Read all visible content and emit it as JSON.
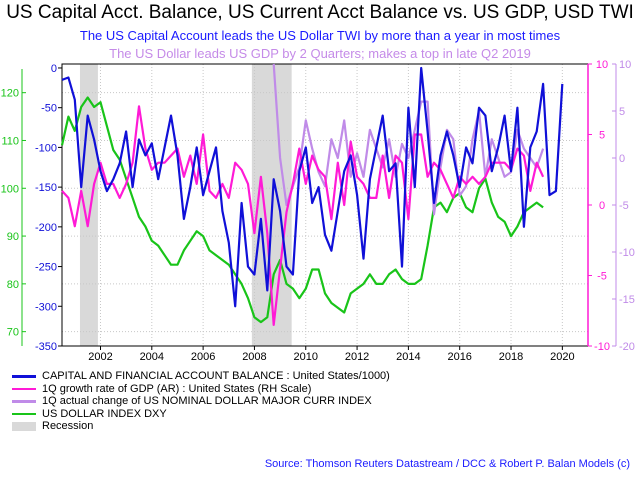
{
  "title": "US Capital Acct. Balance, US Current Acct Balance vs. US GDP, USD TWI",
  "subtitle1": "The US Capital Account leads the US Dollar TWI by more than a year in most times",
  "subtitle2": "The US Dollar leads US GDP by 2 Quarters; makes a top in late Q2 2019",
  "source": "Source: Thomson Reuters Datastream / DCC & Robert P. Balan Models (c)",
  "colors": {
    "capital": "#1010d8",
    "gdp": "#ff1ad6",
    "currency": "#c08be8",
    "dxy": "#19c419",
    "recession": "#d9d9d9",
    "axis_green": "#19c419",
    "axis_blue": "#1010d8",
    "axis_magenta": "#ff1ad6",
    "axis_purple": "#c08be8"
  },
  "legend": [
    {
      "label": "CAPITAL AND FINANCIAL ACCOUNT BALANCE : United States/1000)",
      "color": "#1010d8",
      "kind": "line"
    },
    {
      "label": "1Q growth rate of GDP (AR) : United States (RH Scale)",
      "color": "#ff1ad6",
      "kind": "line"
    },
    {
      "label": "1Q actual change of US NOMINAL DOLLAR MAJOR CURR INDEX",
      "color": "#c08be8",
      "kind": "line"
    },
    {
      "label": "US DOLLAR INDEX DXY",
      "color": "#19c419",
      "kind": "line"
    },
    {
      "label": "Recession",
      "color": "#d9d9d9",
      "kind": "box"
    }
  ],
  "chart_data": {
    "type": "line",
    "x_axis": {
      "range": [
        2000.5,
        2021.0
      ],
      "ticks": [
        2002,
        2004,
        2006,
        2008,
        2010,
        2012,
        2014,
        2016,
        2018,
        2020
      ],
      "grid": true
    },
    "left_axis_dxy": {
      "range": [
        67,
        126
      ],
      "ticks": [
        70,
        80,
        90,
        100,
        110,
        120
      ]
    },
    "left_axis_capital": {
      "range": [
        -350,
        5
      ],
      "ticks": [
        0,
        -50,
        -100,
        -150,
        -200,
        -250,
        -300,
        -350
      ]
    },
    "right_axis_gdp": {
      "range": [
        -10,
        10
      ],
      "ticks": [
        10,
        5,
        0,
        -5,
        -10
      ]
    },
    "right_axis_currency": {
      "range": [
        -20,
        10
      ],
      "ticks": [
        10,
        5,
        0,
        -5,
        -10,
        -15,
        -20
      ]
    },
    "recessions": [
      [
        2001.2,
        2001.9
      ],
      [
        2007.9,
        2009.45
      ]
    ],
    "series": [
      {
        "name": "CAPITAL AND FINANCIAL ACCOUNT BALANCE : United States/1000)",
        "axis": "left_axis_capital",
        "x": [
          2000.5,
          2000.75,
          2001.0,
          2001.25,
          2001.5,
          2001.75,
          2002.0,
          2002.25,
          2002.5,
          2002.75,
          2003.0,
          2003.25,
          2003.5,
          2003.75,
          2004.0,
          2004.25,
          2004.5,
          2004.75,
          2005.0,
          2005.25,
          2005.5,
          2005.75,
          2006.0,
          2006.25,
          2006.5,
          2006.75,
          2007.0,
          2007.25,
          2007.5,
          2007.75,
          2008.0,
          2008.25,
          2008.5,
          2008.75,
          2009.0,
          2009.25,
          2009.5,
          2009.75,
          2010.0,
          2010.25,
          2010.5,
          2010.75,
          2011.0,
          2011.25,
          2011.5,
          2011.75,
          2012.0,
          2012.25,
          2012.5,
          2012.75,
          2013.0,
          2013.25,
          2013.5,
          2013.75,
          2014.0,
          2014.25,
          2014.5,
          2014.75,
          2015.0,
          2015.25,
          2015.5,
          2015.75,
          2016.0,
          2016.25,
          2016.5,
          2016.75,
          2017.0,
          2017.25,
          2017.5,
          2017.75,
          2018.0,
          2018.25,
          2018.5,
          2018.75,
          2019.0,
          2019.25,
          2019.5,
          2019.75,
          2020.0
        ],
        "values": [
          -15,
          -12,
          -40,
          -150,
          -60,
          -90,
          -130,
          -155,
          -140,
          -120,
          -80,
          -150,
          -90,
          -110,
          -95,
          -140,
          -100,
          -60,
          -110,
          -190,
          -150,
          -100,
          -160,
          -130,
          -100,
          -180,
          -220,
          -300,
          -170,
          -250,
          -260,
          -190,
          -280,
          -140,
          -180,
          -250,
          -260,
          -130,
          -100,
          -170,
          -150,
          -210,
          -230,
          -180,
          -130,
          -110,
          -160,
          -240,
          -140,
          -100,
          -60,
          -130,
          -120,
          -250,
          -50,
          -150,
          0,
          -80,
          -170,
          -110,
          -80,
          -110,
          -150,
          -100,
          -120,
          -50,
          -60,
          -130,
          -100,
          -60,
          -130,
          -50,
          -200,
          -100,
          -80,
          -20,
          -160,
          -155,
          -20
        ]
      },
      {
        "name": "1Q growth rate of GDP (AR) : United States (RH Scale)",
        "axis": "right_axis_gdp",
        "x": [
          2000.5,
          2000.75,
          2001.0,
          2001.25,
          2001.5,
          2001.75,
          2002.0,
          2002.25,
          2002.5,
          2002.75,
          2003.0,
          2003.25,
          2003.5,
          2003.75,
          2004.0,
          2004.25,
          2004.5,
          2004.75,
          2005.0,
          2005.25,
          2005.5,
          2005.75,
          2006.0,
          2006.25,
          2006.5,
          2006.75,
          2007.0,
          2007.25,
          2007.5,
          2007.75,
          2008.0,
          2008.25,
          2008.5,
          2008.75,
          2009.0,
          2009.25,
          2009.5,
          2009.75,
          2010.0,
          2010.25,
          2010.5,
          2010.75,
          2011.0,
          2011.25,
          2011.5,
          2011.75,
          2012.0,
          2012.25,
          2012.5,
          2012.75,
          2013.0,
          2013.25,
          2013.5,
          2013.75,
          2014.0,
          2014.25,
          2014.5,
          2014.75,
          2015.0,
          2015.25,
          2015.5,
          2015.75,
          2016.0,
          2016.25,
          2016.5,
          2016.75,
          2017.0,
          2017.25,
          2017.5,
          2017.75,
          2018.0,
          2018.25,
          2018.5,
          2018.75,
          2019.0,
          2019.25
        ],
        "values": [
          1,
          0.5,
          -1.5,
          1,
          -1.5,
          1.5,
          3,
          1.5,
          1.5,
          0.5,
          1.5,
          3,
          7,
          4,
          2.5,
          3,
          3,
          3.5,
          4,
          2,
          3.5,
          1.5,
          5,
          1,
          0.5,
          1.5,
          0.5,
          3,
          2.5,
          1.5,
          -2,
          2,
          -2,
          -8.5,
          -4.5,
          -0.5,
          1.5,
          4,
          1.5,
          3.5,
          2.5,
          2,
          -1,
          3,
          0,
          4.5,
          2,
          1.5,
          0.5,
          0.5,
          3.5,
          0.5,
          3.5,
          3,
          -1,
          5,
          5,
          2,
          3,
          2.5,
          1.5,
          0.5,
          2,
          1.5,
          2,
          1.5,
          2,
          3,
          3,
          3,
          2.5,
          4,
          3.5,
          1,
          3,
          2
        ]
      },
      {
        "name": "1Q actual change of US NOMINAL DOLLAR MAJOR CURR INDEX",
        "axis": "right_axis_currency",
        "x": [
          2008.75,
          2009.0,
          2009.25,
          2009.5,
          2009.75,
          2010.0,
          2010.25,
          2010.5,
          2010.75,
          2011.0,
          2011.25,
          2011.5,
          2011.75,
          2012.0,
          2012.25,
          2012.5,
          2012.75,
          2013.0,
          2013.25,
          2013.5,
          2013.75,
          2014.0,
          2014.25,
          2014.5,
          2014.75,
          2015.0,
          2015.25,
          2015.5,
          2015.75,
          2016.0,
          2016.25,
          2016.5,
          2016.75,
          2017.0,
          2017.25,
          2017.5,
          2017.75,
          2018.0,
          2018.25,
          2018.5,
          2018.75,
          2019.0,
          2019.25
        ],
        "values": [
          10,
          0,
          -5,
          -3,
          -1,
          4,
          1,
          -1.5,
          -3,
          2,
          0,
          4,
          -2,
          0.5,
          -2,
          3,
          1,
          -1,
          2,
          -2,
          1.5,
          0,
          3,
          6,
          6,
          -6,
          -1,
          3,
          2,
          -4,
          -3,
          2,
          5,
          -2,
          2,
          0,
          -2,
          -1.5,
          3,
          1,
          0,
          -1,
          1
        ]
      },
      {
        "name": "US DOLLAR INDEX DXY",
        "axis": "left_axis_dxy",
        "x": [
          2000.5,
          2000.75,
          2001.0,
          2001.25,
          2001.5,
          2001.75,
          2002.0,
          2002.25,
          2002.5,
          2002.75,
          2003.0,
          2003.25,
          2003.5,
          2003.75,
          2004.0,
          2004.25,
          2004.5,
          2004.75,
          2005.0,
          2005.25,
          2005.5,
          2005.75,
          2006.0,
          2006.25,
          2006.5,
          2006.75,
          2007.0,
          2007.25,
          2007.5,
          2007.75,
          2008.0,
          2008.25,
          2008.5,
          2008.75,
          2009.0,
          2009.25,
          2009.5,
          2009.75,
          2010.0,
          2010.25,
          2010.5,
          2010.75,
          2011.0,
          2011.25,
          2011.5,
          2011.75,
          2012.0,
          2012.25,
          2012.5,
          2012.75,
          2013.0,
          2013.25,
          2013.5,
          2013.75,
          2014.0,
          2014.25,
          2014.5,
          2014.75,
          2015.0,
          2015.25,
          2015.5,
          2015.75,
          2016.0,
          2016.25,
          2016.5,
          2016.75,
          2017.0,
          2017.25,
          2017.5,
          2017.75,
          2018.0,
          2018.25,
          2018.5,
          2018.75,
          2019.0,
          2019.25
        ],
        "values": [
          109,
          115,
          112,
          117,
          119,
          117,
          118,
          113,
          108,
          106,
          102,
          98,
          94,
          92,
          89,
          88,
          86,
          84,
          84,
          87,
          89,
          91,
          90,
          87,
          86,
          85,
          84,
          82,
          80,
          77,
          73,
          72,
          73,
          82,
          85,
          80,
          79,
          77,
          79,
          83,
          83,
          78,
          76,
          75,
          74,
          78,
          79,
          80,
          82,
          80,
          80,
          82,
          83,
          81,
          80,
          80,
          81,
          88,
          96,
          97,
          95,
          98,
          99,
          96,
          95,
          100,
          102,
          97,
          94,
          93,
          90,
          92,
          95,
          96,
          97,
          96
        ]
      }
    ]
  }
}
